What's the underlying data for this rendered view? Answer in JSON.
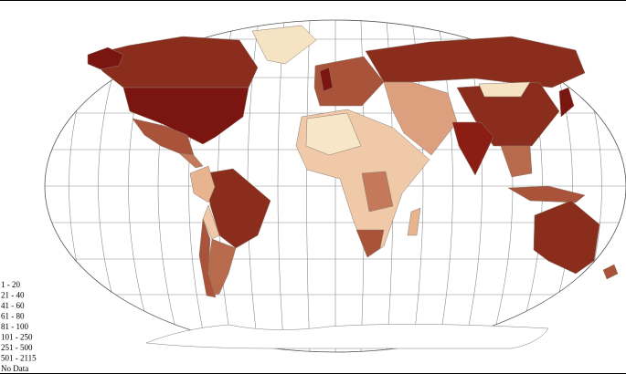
{
  "legend": {
    "items": [
      "1 - 20",
      "21 - 40",
      "41 - 60",
      "61 - 80",
      "81 - 100",
      "101 - 250",
      "251 - 500",
      "501 - 2115",
      "No Data"
    ]
  }
}
